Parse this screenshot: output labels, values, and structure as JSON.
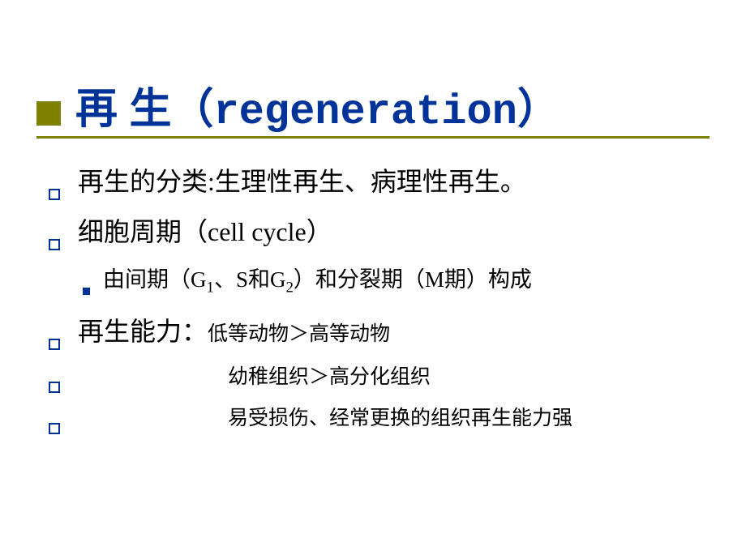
{
  "title": {
    "text": "再 生（regeneration）",
    "color": "#003399",
    "accent_color": "#808000",
    "font_size": 52
  },
  "bullets": [
    {
      "level": 1,
      "prefix": "再生的分类:",
      "rest": "生理性再生、病理性再生。"
    },
    {
      "level": 1,
      "prefix": "细胞周期（cell cycle）",
      "rest": ""
    },
    {
      "level": 2,
      "html": "由间期（G<sub>1</sub>、S和G<sub>2</sub>）和分裂期（M期）构成"
    },
    {
      "level": 1,
      "prefix": "再生能力：",
      "small": "低等动物＞高等动物"
    },
    {
      "level": 1,
      "indent_text": "幼稚组织＞高分化组织"
    },
    {
      "level": 1,
      "indent_text": "易受损伤、经常更换的组织再生能力强"
    }
  ],
  "colors": {
    "background": "#ffffff",
    "text": "#000000",
    "bullet_outline": "#003399",
    "bullet_fill": "#003399"
  }
}
